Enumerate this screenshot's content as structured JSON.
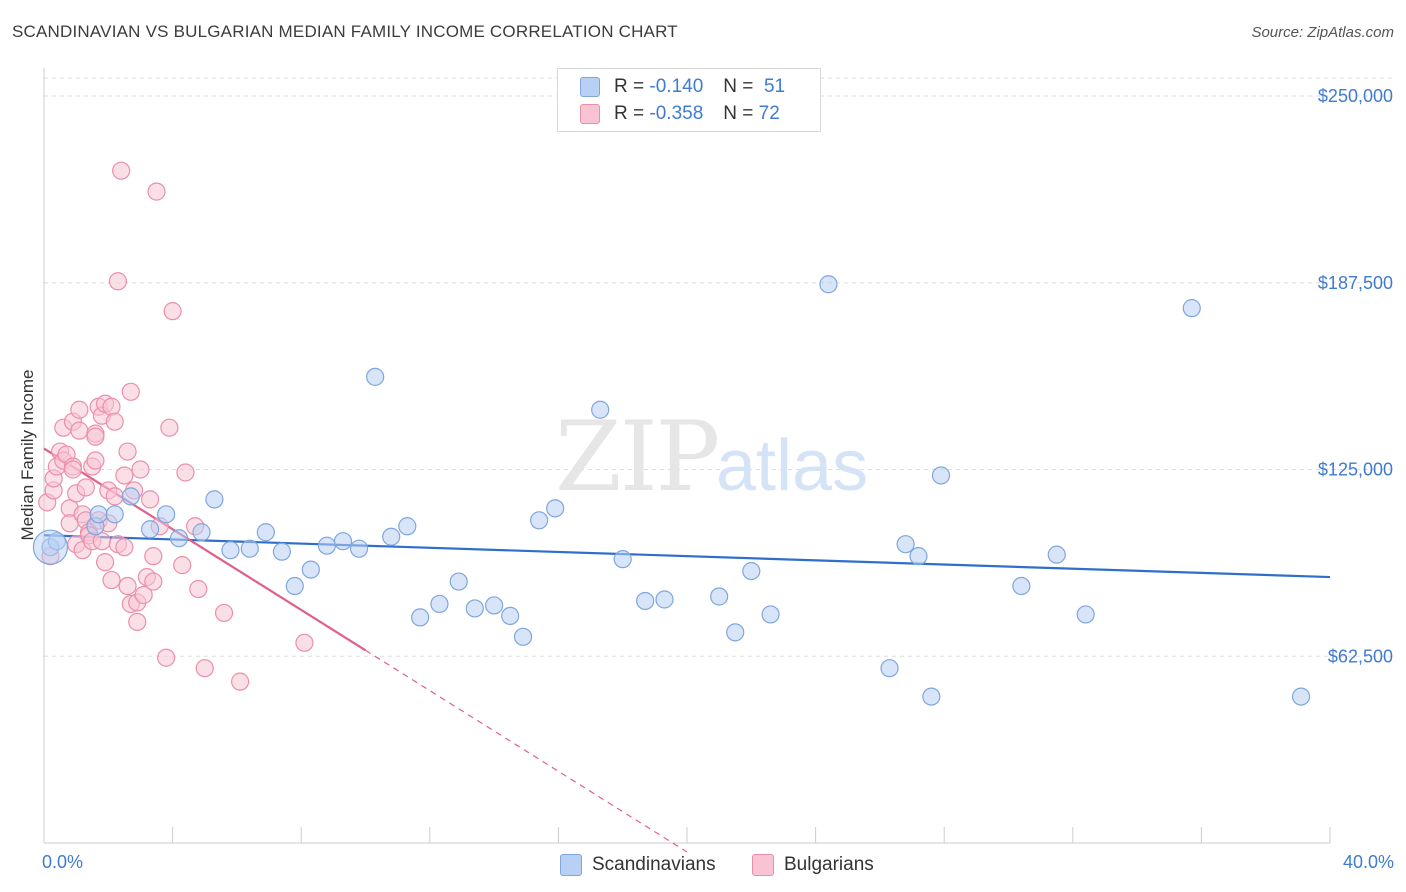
{
  "header": {
    "title": "SCANDINAVIAN VS BULGARIAN MEDIAN FAMILY INCOME CORRELATION CHART",
    "source": "Source: ZipAtlas.com"
  },
  "watermark": {
    "zip": "ZIP",
    "atlas": "atlas"
  },
  "legend": {
    "rows": [
      {
        "r_label": "R =",
        "r_value": "-0.140",
        "n_label": "N =",
        "n_value": "51"
      },
      {
        "r_label": "R =",
        "r_value": "-0.358",
        "n_label": "N =",
        "n_value": "72"
      }
    ]
  },
  "bottom_legend": {
    "series1": "Scandinavians",
    "series2": "Bulgarians"
  },
  "colors": {
    "series1_fill": "#b8d0f4",
    "series1_stroke": "#7fa6dd",
    "series1_line": "#2f6fcb",
    "series2_fill": "#f8c4d4",
    "series2_stroke": "#ea8faa",
    "series2_line": "#e0608a",
    "grid": "#dddddd",
    "axis_label": "#3f7bd1"
  },
  "chart_data": {
    "type": "scatter",
    "title": "SCANDINAVIAN VS BULGARIAN MEDIAN FAMILY INCOME CORRELATION CHART",
    "xlabel": "",
    "ylabel": "Median Family Income",
    "xlim": [
      0,
      40
    ],
    "ylim": [
      0,
      260000
    ],
    "x_tick_labels": [
      "0.0%",
      "40.0%"
    ],
    "y_ticks": [
      62500,
      125000,
      187500,
      250000
    ],
    "y_tick_labels": [
      "$62,500",
      "$125,000",
      "$187,500",
      "$250,000"
    ],
    "grid": true,
    "legend_position": "top-center",
    "series": [
      {
        "name": "Scandinavians",
        "R": -0.14,
        "N": 51,
        "trend": {
          "x": [
            0,
            40
          ],
          "y": [
            103000,
            89000
          ]
        },
        "points": [
          [
            0.2,
            99000
          ],
          [
            1.6,
            106000
          ],
          [
            1.7,
            110000
          ],
          [
            2.2,
            110000
          ],
          [
            2.7,
            116000
          ],
          [
            3.3,
            105000
          ],
          [
            3.8,
            110000
          ],
          [
            4.2,
            102000
          ],
          [
            4.9,
            104000
          ],
          [
            5.3,
            115000
          ],
          [
            5.8,
            98000
          ],
          [
            6.4,
            98500
          ],
          [
            6.9,
            104000
          ],
          [
            7.4,
            97500
          ],
          [
            7.8,
            86000
          ],
          [
            8.3,
            91500
          ],
          [
            8.8,
            99500
          ],
          [
            9.3,
            101000
          ],
          [
            9.8,
            98500
          ],
          [
            10.3,
            156000
          ],
          [
            10.8,
            102500
          ],
          [
            11.3,
            106000
          ],
          [
            11.7,
            75500
          ],
          [
            12.3,
            80000
          ],
          [
            12.9,
            87500
          ],
          [
            13.4,
            78500
          ],
          [
            14.0,
            79500
          ],
          [
            14.5,
            76000
          ],
          [
            14.9,
            69000
          ],
          [
            15.4,
            108000
          ],
          [
            15.9,
            112000
          ],
          [
            17.3,
            145000
          ],
          [
            18.0,
            95000
          ],
          [
            18.7,
            81000
          ],
          [
            19.3,
            81500
          ],
          [
            21.0,
            82500
          ],
          [
            21.5,
            70500
          ],
          [
            22.0,
            91000
          ],
          [
            22.6,
            76500
          ],
          [
            24.4,
            187000
          ],
          [
            26.3,
            58500
          ],
          [
            26.8,
            100000
          ],
          [
            27.2,
            96000
          ],
          [
            27.6,
            49000
          ],
          [
            27.9,
            123000
          ],
          [
            30.4,
            86000
          ],
          [
            31.5,
            96500
          ],
          [
            32.4,
            76500
          ],
          [
            35.7,
            179000
          ],
          [
            39.1,
            49000
          ],
          [
            0.4,
            101000
          ]
        ]
      },
      {
        "name": "Bulgarians",
        "R": -0.358,
        "N": 72,
        "trend": {
          "x": [
            0,
            10
          ],
          "y": [
            132000,
            64500
          ]
        },
        "trend_dashed": {
          "x": [
            10,
            20
          ],
          "y": [
            64500,
            -3000
          ]
        },
        "points": [
          [
            0.1,
            114000
          ],
          [
            0.2,
            96000
          ],
          [
            0.3,
            118000
          ],
          [
            0.3,
            122000
          ],
          [
            0.4,
            126000
          ],
          [
            0.5,
            131000
          ],
          [
            0.6,
            128000
          ],
          [
            0.6,
            139000
          ],
          [
            0.7,
            130000
          ],
          [
            0.8,
            112000
          ],
          [
            0.8,
            107000
          ],
          [
            0.9,
            126000
          ],
          [
            0.9,
            141000
          ],
          [
            1.0,
            117000
          ],
          [
            1.0,
            100000
          ],
          [
            1.1,
            138000
          ],
          [
            1.1,
            145000
          ],
          [
            1.2,
            110000
          ],
          [
            1.2,
            98000
          ],
          [
            1.3,
            119000
          ],
          [
            1.3,
            108000
          ],
          [
            1.4,
            104000
          ],
          [
            1.4,
            103000
          ],
          [
            1.5,
            126000
          ],
          [
            1.5,
            101000
          ],
          [
            1.6,
            137000
          ],
          [
            1.6,
            128000
          ],
          [
            1.7,
            146000
          ],
          [
            1.7,
            108000
          ],
          [
            1.8,
            101000
          ],
          [
            1.8,
            143000
          ],
          [
            1.9,
            147000
          ],
          [
            1.9,
            94000
          ],
          [
            2.0,
            118000
          ],
          [
            2.0,
            107000
          ],
          [
            2.1,
            146000
          ],
          [
            2.1,
            88000
          ],
          [
            2.2,
            141000
          ],
          [
            2.2,
            116000
          ],
          [
            2.3,
            100000
          ],
          [
            2.3,
            188000
          ],
          [
            2.4,
            225000
          ],
          [
            2.5,
            123000
          ],
          [
            2.5,
            99000
          ],
          [
            2.6,
            131000
          ],
          [
            2.6,
            86000
          ],
          [
            2.7,
            151000
          ],
          [
            2.7,
            80000
          ],
          [
            2.8,
            118000
          ],
          [
            2.9,
            74000
          ],
          [
            2.9,
            80500
          ],
          [
            3.0,
            125000
          ],
          [
            3.1,
            83000
          ],
          [
            3.2,
            89000
          ],
          [
            3.3,
            115000
          ],
          [
            3.4,
            96000
          ],
          [
            3.4,
            87500
          ],
          [
            3.5,
            218000
          ],
          [
            3.6,
            106000
          ],
          [
            3.8,
            62000
          ],
          [
            3.9,
            139000
          ],
          [
            4.0,
            178000
          ],
          [
            4.3,
            93000
          ],
          [
            4.4,
            124000
          ],
          [
            4.7,
            106000
          ],
          [
            4.8,
            85000
          ],
          [
            5.0,
            58500
          ],
          [
            5.6,
            77000
          ],
          [
            6.1,
            54000
          ],
          [
            8.1,
            67000
          ],
          [
            1.6,
            136000
          ],
          [
            0.9,
            125000
          ]
        ]
      }
    ]
  }
}
